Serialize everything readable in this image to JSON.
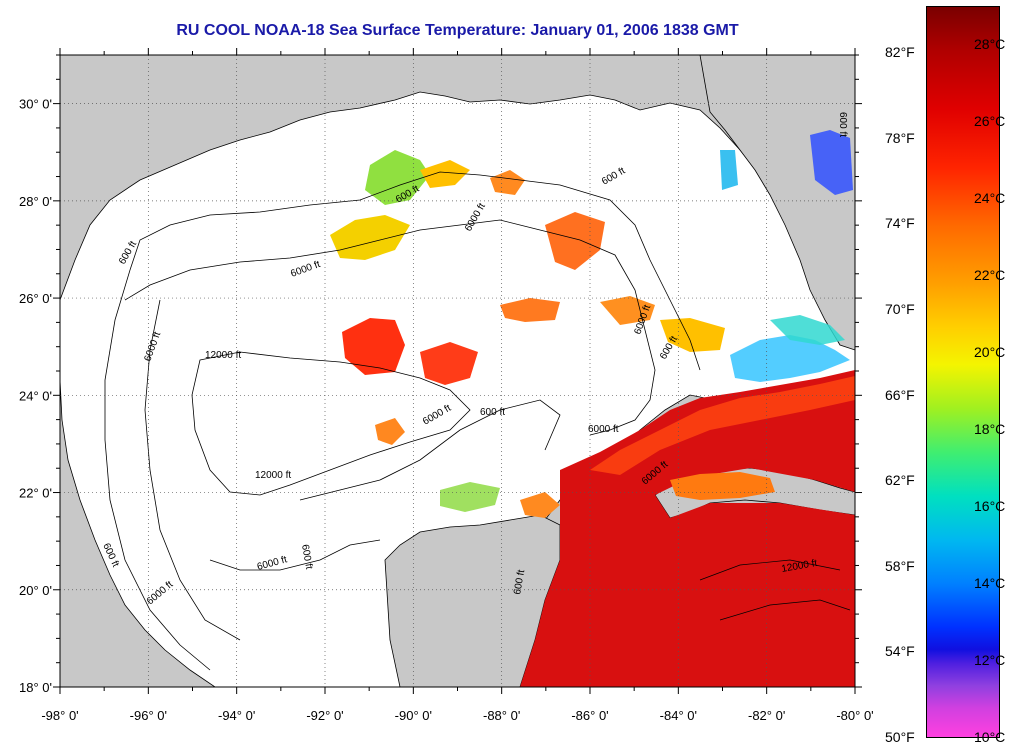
{
  "title": "RU COOL  NOAA-18  Sea Surface Temperature:  January 01, 2006 1838 GMT",
  "map": {
    "lon_ticks": [
      "-98° 0'",
      "-96° 0'",
      "-94° 0'",
      "-92° 0'",
      "-90° 0'",
      "-88° 0'",
      "-86° 0'",
      "-84° 0'",
      "-82° 0'",
      "-80° 0'"
    ],
    "lat_ticks": [
      "30° 0'",
      "28° 0'",
      "26° 0'",
      "24° 0'",
      "22° 0'",
      "20° 0'",
      "18° 0'"
    ],
    "lon_range": [
      -98,
      -80
    ],
    "lat_range": [
      18,
      31
    ],
    "contour_labels": [
      "600 ft",
      "6000 ft",
      "12000 ft",
      "600 ft",
      "6000 ft",
      "600 ft",
      "600 ft",
      "6000 ft",
      "6000 ft",
      "6000 ft",
      "12000 ft",
      "600 ft",
      "6000 ft",
      "600 ft",
      "6000 ft",
      "6000 ft",
      "600 ft",
      "6000 ft",
      "12000 ft",
      "600 ft",
      "600 ft"
    ],
    "land_color": "#c8c8c8",
    "water_nodata_color": "#ffffff"
  },
  "colorbar": {
    "celsius_ticks": [
      "28°C",
      "26°C",
      "24°C",
      "22°C",
      "20°C",
      "18°C",
      "16°C",
      "14°C",
      "12°C",
      "10°C"
    ],
    "fahrenheit_ticks": [
      "82°F",
      "78°F",
      "74°F",
      "70°F",
      "66°F",
      "62°F",
      "58°F",
      "54°F",
      "50°F"
    ],
    "range_c": [
      10,
      29
    ]
  }
}
